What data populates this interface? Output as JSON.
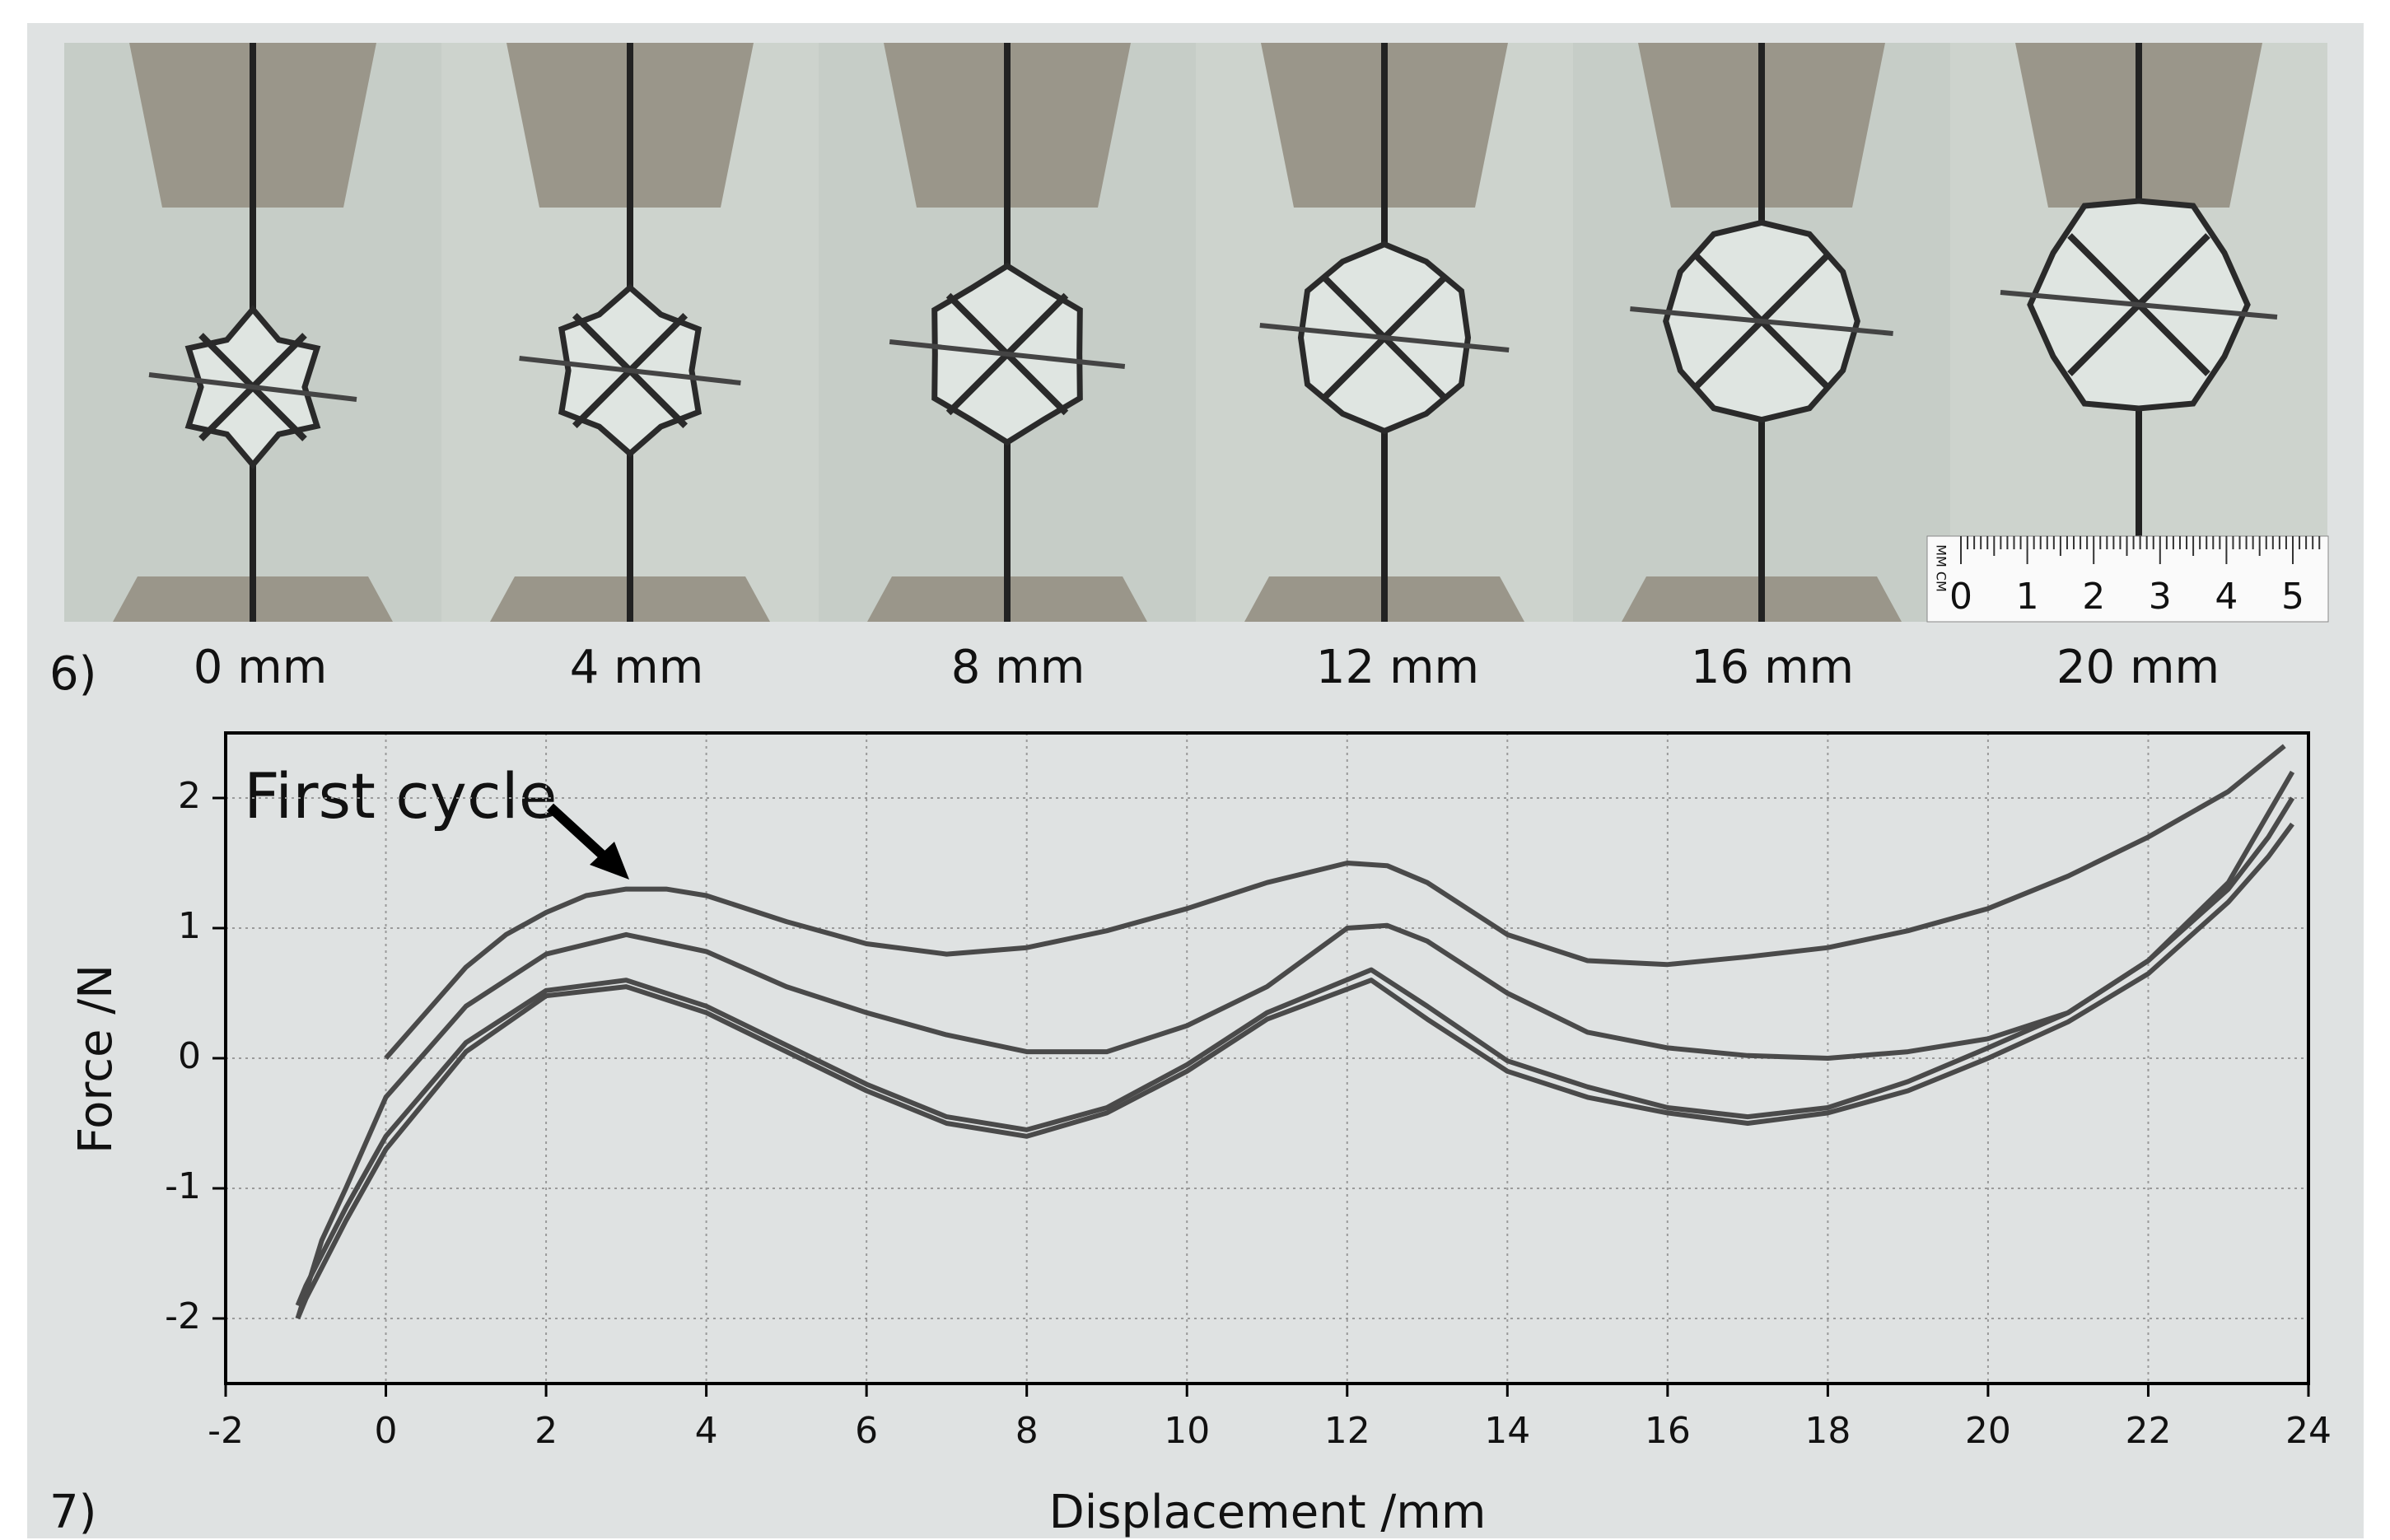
{
  "panel_labels": [
    "6)",
    "7)"
  ],
  "photos": {
    "labels": [
      "0 mm",
      "4 mm",
      "8 mm",
      "12 mm",
      "16 mm",
      "20 mm"
    ],
    "ruler_units": "MM CM",
    "ruler_labels": [
      "0",
      "1",
      "2",
      "3",
      "4",
      "5"
    ]
  },
  "chart_data": {
    "type": "line",
    "annotation": "First cycle",
    "x_label": "Displacement /mm",
    "y_label": "Force /N",
    "xlim": [
      -2,
      24
    ],
    "ylim": [
      -2.5,
      2.5
    ],
    "xticks": [
      -2,
      0,
      2,
      4,
      6,
      8,
      10,
      12,
      14,
      16,
      18,
      20,
      22,
      24
    ],
    "yticks": [
      -2,
      -1,
      0,
      1,
      2
    ],
    "grid": true,
    "series": [
      {
        "color": "#4a4a4a",
        "x": [
          0,
          0.5,
          1,
          1.5,
          2,
          2.5,
          3,
          3.5,
          4,
          5,
          6,
          7,
          8,
          9,
          10,
          11,
          12,
          12.5,
          13,
          14,
          15,
          16,
          17,
          18,
          19,
          20,
          21,
          22,
          23,
          23.7
        ],
        "values": [
          0,
          0.35,
          0.7,
          0.95,
          1.12,
          1.25,
          1.3,
          1.3,
          1.25,
          1.05,
          0.88,
          0.8,
          0.85,
          0.98,
          1.15,
          1.35,
          1.5,
          1.48,
          1.35,
          0.95,
          0.75,
          0.72,
          0.78,
          0.85,
          0.98,
          1.15,
          1.4,
          1.7,
          2.05,
          2.4
        ]
      },
      {
        "color": "#4a4a4a",
        "x": [
          23.8,
          23.5,
          23,
          22,
          21,
          20,
          19,
          18,
          17,
          16,
          15,
          14,
          13,
          12.3,
          11,
          10,
          9,
          8,
          7,
          6,
          5,
          4,
          3,
          2,
          1,
          0,
          -0.5,
          -1,
          -1.1
        ],
        "values": [
          1.8,
          1.55,
          1.2,
          0.65,
          0.28,
          0.0,
          -0.25,
          -0.42,
          -0.5,
          -0.42,
          -0.3,
          -0.1,
          0.3,
          0.6,
          0.3,
          -0.1,
          -0.42,
          -0.6,
          -0.5,
          -0.25,
          0.05,
          0.35,
          0.55,
          0.48,
          0.05,
          -0.7,
          -1.25,
          -1.85,
          -2.0
        ]
      },
      {
        "color": "#4a4a4a",
        "x": [
          -1.1,
          -0.8,
          -0.5,
          0,
          0.5,
          1,
          2,
          3,
          4,
          5,
          6,
          7,
          8,
          9,
          10,
          11,
          12,
          12.5,
          13,
          14,
          15,
          16,
          17,
          18,
          19,
          20,
          21,
          22,
          23,
          23.8
        ],
        "values": [
          -2.0,
          -1.4,
          -1.0,
          -0.3,
          0.05,
          0.4,
          0.8,
          0.95,
          0.82,
          0.55,
          0.35,
          0.18,
          0.05,
          0.05,
          0.25,
          0.55,
          1.0,
          1.02,
          0.9,
          0.5,
          0.2,
          0.08,
          0.02,
          0.0,
          0.05,
          0.15,
          0.35,
          0.75,
          1.35,
          2.2
        ]
      },
      {
        "color": "#4a4a4a",
        "x": [
          23.8,
          23.5,
          23,
          22,
          21,
          20,
          19,
          18,
          17,
          16,
          15,
          14,
          13,
          12.3,
          11,
          10,
          9,
          8,
          7,
          6,
          5,
          4,
          3,
          2,
          1,
          0,
          -0.5,
          -1,
          -1.1
        ],
        "values": [
          2.0,
          1.7,
          1.3,
          0.75,
          0.35,
          0.08,
          -0.18,
          -0.38,
          -0.45,
          -0.38,
          -0.22,
          -0.02,
          0.4,
          0.68,
          0.35,
          -0.05,
          -0.38,
          -0.55,
          -0.45,
          -0.2,
          0.1,
          0.4,
          0.6,
          0.52,
          0.12,
          -0.6,
          -1.15,
          -1.75,
          -1.9
        ]
      }
    ]
  }
}
